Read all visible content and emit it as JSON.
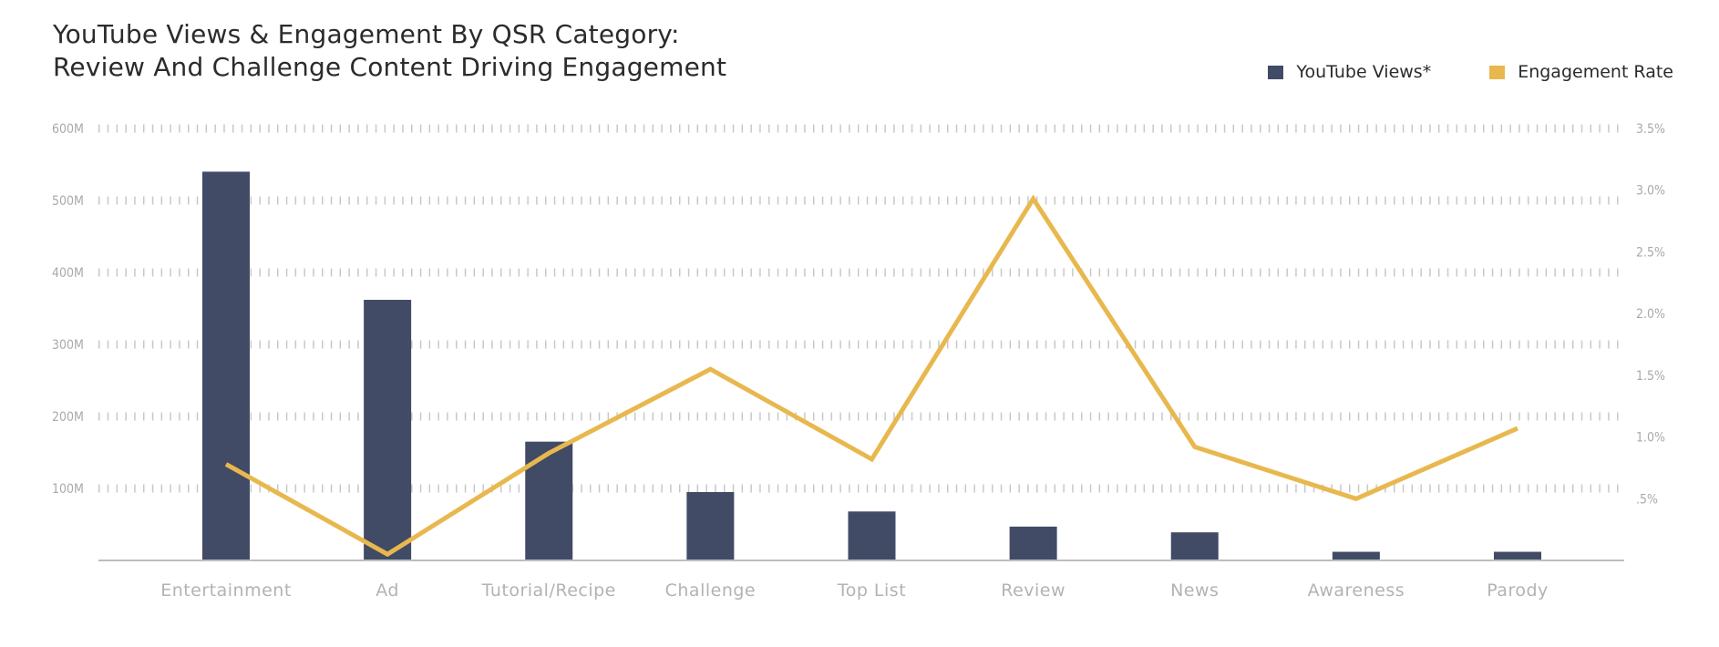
{
  "title": {
    "line1": "YouTube Views & Engagement By QSR Category:",
    "line2": "Review And Challenge Content Driving Engagement"
  },
  "legend": {
    "views_label": "YouTube Views*",
    "engagement_label": "Engagement Rate"
  },
  "colors": {
    "views": "#414b66",
    "engagement": "#e8b84e",
    "grid": "#c8c8c8",
    "axis_text": "#a9a9a9",
    "baseline": "#bdbdbd"
  },
  "chart_data": {
    "type": "bar",
    "title": "YouTube Views & Engagement By QSR Category: Review And Challenge Content Driving Engagement",
    "categories": [
      "Entertainment",
      "Ad",
      "Tutorial/Recipe",
      "Challenge",
      "Top List",
      "Review",
      "News",
      "Awareness",
      "Parody"
    ],
    "series": [
      {
        "name": "YouTube Views*",
        "type": "bar",
        "axis": "left",
        "values": [
          540,
          362,
          165,
          95,
          68,
          47,
          39,
          12,
          12
        ]
      },
      {
        "name": "Engagement Rate",
        "type": "line",
        "axis": "right",
        "values": [
          0.78,
          0.05,
          0.87,
          1.55,
          0.82,
          2.93,
          0.92,
          0.5,
          1.07
        ]
      }
    ],
    "y_left": {
      "range": [
        0,
        600
      ],
      "ticks": [
        100,
        200,
        300,
        400,
        500,
        600
      ],
      "tick_labels": [
        "100M",
        "200M",
        "300M",
        "400M",
        "500M",
        "600M"
      ]
    },
    "y_right": {
      "range": [
        0,
        3.5
      ],
      "ticks": [
        0.5,
        1.0,
        1.5,
        2.0,
        2.5,
        3.0,
        3.5
      ],
      "tick_labels": [
        ".5%",
        "1.0%",
        "1.5%",
        "2.0%",
        "2.5%",
        "3.0%",
        "3.5%"
      ]
    },
    "grid": true,
    "legend_position": "top-right"
  }
}
